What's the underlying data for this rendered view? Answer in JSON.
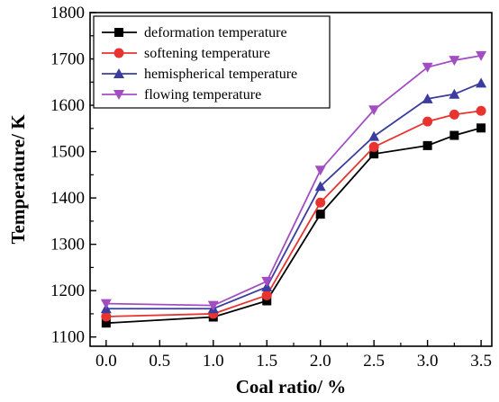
{
  "chart_data": {
    "type": "line",
    "xlabel": "Coal ratio/ %",
    "ylabel": "Temperature/ K",
    "xlim": [
      -0.15,
      3.6
    ],
    "ylim": [
      1080,
      1800
    ],
    "x_ticks": [
      0.0,
      0.5,
      1.0,
      1.5,
      2.0,
      2.5,
      3.0,
      3.5
    ],
    "y_ticks": [
      1100,
      1200,
      1300,
      1400,
      1500,
      1600,
      1700,
      1800
    ],
    "x_tick_labels": [
      "0.0",
      "0.5",
      "1.0",
      "1.5",
      "2.0",
      "2.5",
      "3.0",
      "3.5"
    ],
    "y_tick_labels": [
      "1100",
      "1200",
      "1300",
      "1400",
      "1500",
      "1600",
      "1700",
      "1800"
    ],
    "x": [
      0.0,
      1.0,
      1.5,
      2.0,
      2.5,
      3.0,
      3.25,
      3.5
    ],
    "grid": false,
    "legend_position": "top-left",
    "series": [
      {
        "name": "deformation temperature",
        "color": "#000000",
        "marker": "square",
        "values": [
          1130,
          1143,
          1178,
          1365,
          1495,
          1513,
          1535,
          1551
        ]
      },
      {
        "name": "softening temperature",
        "color": "#e8332f",
        "marker": "circle",
        "values": [
          1144,
          1150,
          1190,
          1390,
          1510,
          1565,
          1580,
          1588
        ]
      },
      {
        "name": "hemispherical temperature",
        "color": "#3c3c9e",
        "marker": "triangle-up",
        "values": [
          1161,
          1161,
          1208,
          1425,
          1533,
          1614,
          1624,
          1648
        ]
      },
      {
        "name": "flowing temperature",
        "color": "#a24ec2",
        "marker": "triangle-down",
        "values": [
          1172,
          1168,
          1220,
          1460,
          1590,
          1682,
          1697,
          1707
        ]
      }
    ]
  }
}
